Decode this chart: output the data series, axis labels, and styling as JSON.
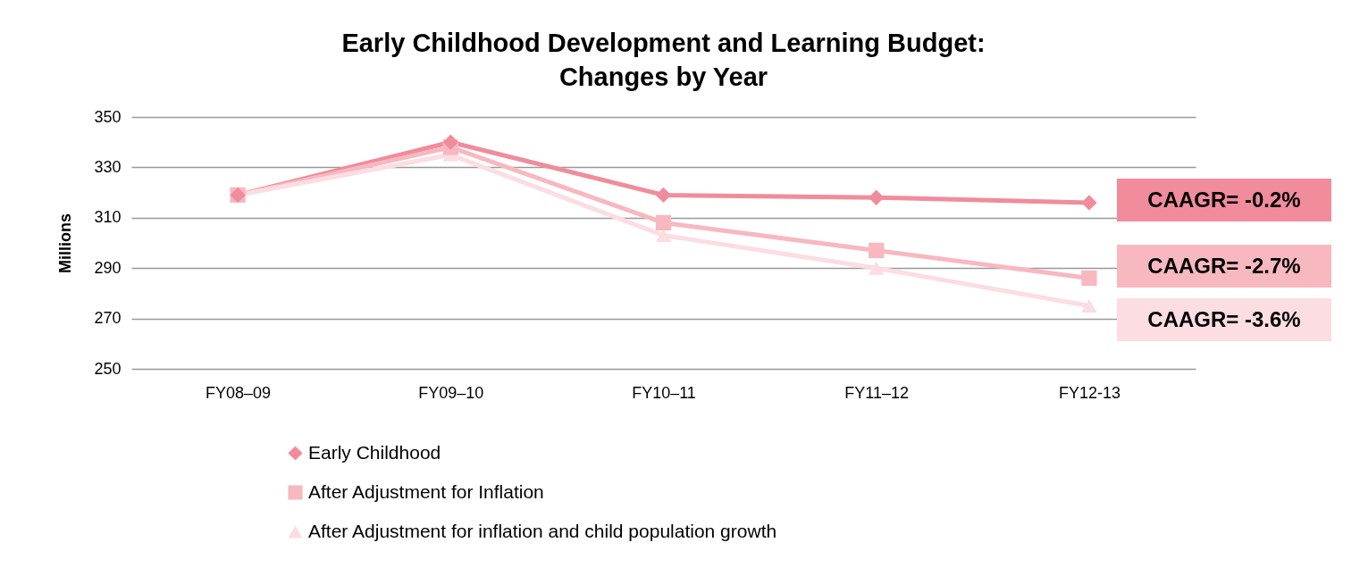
{
  "chart_data": {
    "type": "line",
    "title": "Early Childhood Development and Learning Budget:\nChanges by Year",
    "ylabel": "Millions",
    "categories": [
      "FY08–09",
      "FY09–10",
      "FY10–11",
      "FY11–12",
      "FY12-13"
    ],
    "series": [
      {
        "name": "Early Childhood",
        "color": "#f08c9c",
        "marker": "diamond",
        "values": [
          319,
          340,
          319,
          318,
          316
        ]
      },
      {
        "name": "After Adjustment for Inflation",
        "color": "#f7b8c0",
        "marker": "square",
        "values": [
          319,
          338,
          308,
          297,
          286
        ]
      },
      {
        "name": "After Adjustment for inflation and child population growth",
        "color": "#fbdde2",
        "marker": "triangle",
        "values": [
          319,
          335,
          303,
          290,
          275
        ]
      }
    ],
    "ylim": [
      250,
      350
    ],
    "yticks": [
      250,
      270,
      290,
      310,
      330,
      350
    ],
    "grid": "y",
    "legend": "bottom",
    "annotations": [
      "CAAGR= -0.2%",
      "CAAGR= -2.7%",
      "CAAGR= -3.6%"
    ]
  }
}
